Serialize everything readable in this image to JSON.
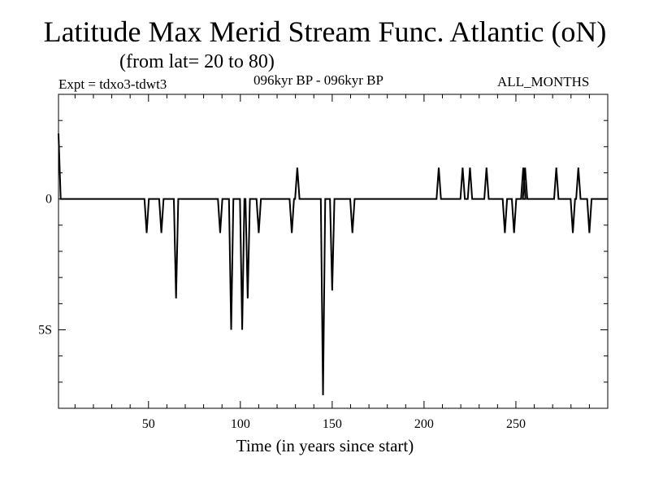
{
  "header": {
    "title": "Latitude Max Merid Stream Func. Atlantic (oN)",
    "subtitle": "(from lat= 20 to 80)",
    "expt": "Expt = tdxo3-tdwt3",
    "period": "096kyr BP - 096kyr BP",
    "months": "ALL_MONTHS"
  },
  "chart_data": {
    "type": "line",
    "title": "Latitude Max Merid Stream Func. Atlantic (oN)",
    "xlabel": "Time (in years since start)",
    "ylabel": "",
    "xlim": [
      1,
      300
    ],
    "ylim": [
      -8,
      4
    ],
    "x_ticks": [
      50,
      100,
      150,
      200,
      250
    ],
    "y_ticks": [
      {
        "value": 0,
        "label": "0"
      },
      {
        "value": -5,
        "label": "5S"
      }
    ],
    "grid": false,
    "baseline": 0,
    "series": [
      {
        "spikes": [
          [
            1,
            2.5
          ],
          [
            49,
            -1.3
          ],
          [
            57,
            -1.3
          ],
          [
            65,
            -3.8
          ],
          [
            89,
            -1.3
          ],
          [
            95,
            -5.0
          ],
          [
            101,
            -5.0
          ],
          [
            104,
            -3.8
          ],
          [
            110,
            -1.3
          ],
          [
            128,
            -1.3
          ],
          [
            131,
            1.2
          ],
          [
            145,
            -7.5
          ],
          [
            150,
            -3.5
          ],
          [
            161,
            -1.3
          ],
          [
            208,
            1.2
          ],
          [
            221,
            1.2
          ],
          [
            225,
            1.2
          ],
          [
            234,
            1.2
          ],
          [
            244,
            -1.3
          ],
          [
            249,
            -1.3
          ],
          [
            254,
            1.2
          ],
          [
            255,
            1.2
          ],
          [
            272,
            1.2
          ],
          [
            281,
            -1.3
          ],
          [
            284,
            1.2
          ],
          [
            290,
            -1.3
          ]
        ]
      }
    ]
  }
}
